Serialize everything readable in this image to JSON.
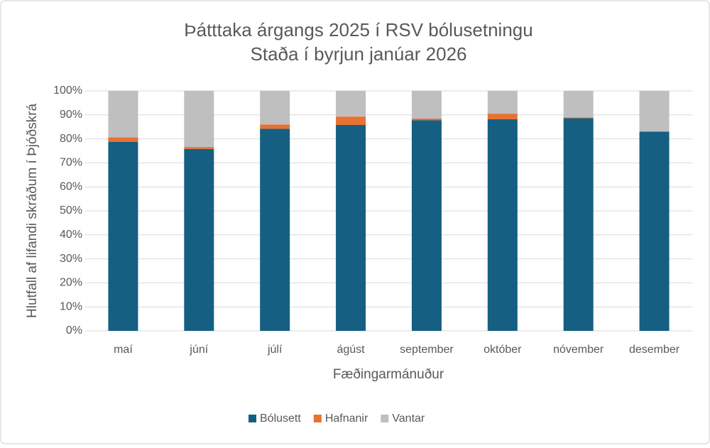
{
  "chart_data": {
    "type": "stacked-bar",
    "title": "Þátttaka árgangs 2025 í RSV bólusetningu",
    "subtitle": "Staða í byrjun janúar 2026",
    "x_label": "Fæðingarmánuður",
    "y_label": "Hlutfall af lifandi skráðum í Þjóðskrá",
    "categories": [
      "maí",
      "júní",
      "júlí",
      "ágúst",
      "september",
      "október",
      "nóvember",
      "desember"
    ],
    "series": [
      {
        "name": "Bólusett",
        "color": "#155f82",
        "values": [
          78.8,
          75.8,
          84.2,
          85.8,
          87.8,
          88.2,
          88.6,
          83.0
        ]
      },
      {
        "name": "Hafnanir",
        "color": "#e97132",
        "values": [
          1.8,
          0.8,
          1.8,
          3.5,
          0.7,
          2.3,
          0.3,
          0
        ]
      },
      {
        "name": "Vantar",
        "color": "#bfbfbf",
        "values": [
          19.4,
          23.4,
          14.0,
          10.7,
          11.5,
          9.5,
          11.1,
          17.0
        ]
      }
    ],
    "ylim": [
      0,
      100
    ],
    "yticks": [
      {
        "value": 0,
        "label": "0%"
      },
      {
        "value": 10,
        "label": "10%"
      },
      {
        "value": 20,
        "label": "20%"
      },
      {
        "value": 30,
        "label": "30%"
      },
      {
        "value": 40,
        "label": "40%"
      },
      {
        "value": 50,
        "label": "50%"
      },
      {
        "value": 60,
        "label": "60%"
      },
      {
        "value": 70,
        "label": "70%"
      },
      {
        "value": 80,
        "label": "80%"
      },
      {
        "value": 90,
        "label": "90%"
      },
      {
        "value": 100,
        "label": "100%"
      }
    ],
    "grid": true,
    "legend": "bottom"
  }
}
